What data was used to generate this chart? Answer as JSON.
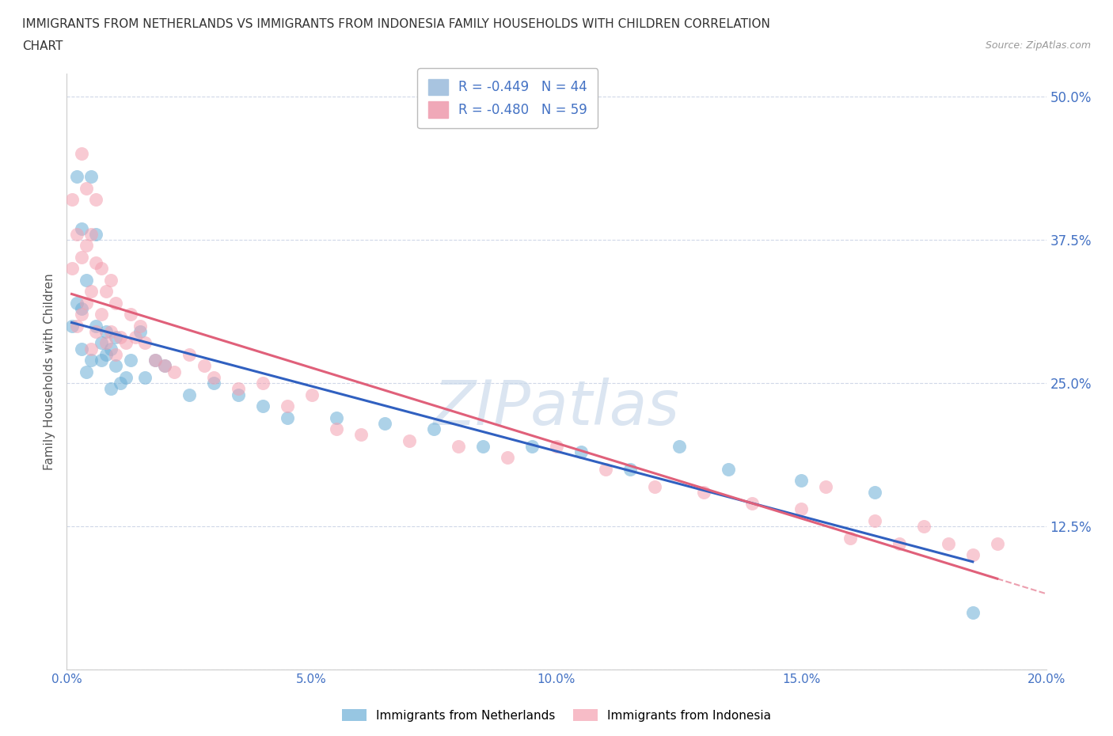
{
  "title_line1": "IMMIGRANTS FROM NETHERLANDS VS IMMIGRANTS FROM INDONESIA FAMILY HOUSEHOLDS WITH CHILDREN CORRELATION",
  "title_line2": "CHART",
  "source": "Source: ZipAtlas.com",
  "xlabel_nl": "Immigrants from Netherlands",
  "xlabel_id": "Immigrants from Indonesia",
  "ylabel": "Family Households with Children",
  "watermark": "ZIPatlas",
  "legend_nl": {
    "R": -0.449,
    "N": 44
  },
  "legend_id": {
    "R": -0.48,
    "N": 59
  },
  "nl_color": "#6baed6",
  "id_color": "#f4a0b0",
  "nl_line_color": "#3060C0",
  "id_line_color": "#E0607A",
  "xlim": [
    0.0,
    0.2
  ],
  "ylim": [
    0.0,
    0.52
  ],
  "xticks": [
    0.0,
    0.05,
    0.1,
    0.15,
    0.2
  ],
  "xtick_labels": [
    "0.0%",
    "5.0%",
    "10.0%",
    "15.0%",
    "20.0%"
  ],
  "yticks": [
    0.0,
    0.125,
    0.25,
    0.375,
    0.5
  ],
  "ytick_labels": [
    "",
    "12.5%",
    "25.0%",
    "37.5%",
    "50.0%"
  ],
  "nl_x": [
    0.001,
    0.002,
    0.002,
    0.003,
    0.003,
    0.003,
    0.004,
    0.004,
    0.005,
    0.005,
    0.006,
    0.006,
    0.007,
    0.007,
    0.008,
    0.008,
    0.009,
    0.009,
    0.01,
    0.01,
    0.011,
    0.012,
    0.013,
    0.015,
    0.016,
    0.018,
    0.02,
    0.025,
    0.03,
    0.035,
    0.04,
    0.045,
    0.055,
    0.065,
    0.075,
    0.085,
    0.095,
    0.105,
    0.115,
    0.125,
    0.135,
    0.15,
    0.165,
    0.185
  ],
  "nl_y": [
    0.3,
    0.32,
    0.43,
    0.28,
    0.315,
    0.385,
    0.26,
    0.34,
    0.27,
    0.43,
    0.3,
    0.38,
    0.27,
    0.285,
    0.275,
    0.295,
    0.245,
    0.28,
    0.265,
    0.29,
    0.25,
    0.255,
    0.27,
    0.295,
    0.255,
    0.27,
    0.265,
    0.24,
    0.25,
    0.24,
    0.23,
    0.22,
    0.22,
    0.215,
    0.21,
    0.195,
    0.195,
    0.19,
    0.175,
    0.195,
    0.175,
    0.165,
    0.155,
    0.05
  ],
  "id_x": [
    0.001,
    0.001,
    0.002,
    0.002,
    0.003,
    0.003,
    0.003,
    0.004,
    0.004,
    0.004,
    0.005,
    0.005,
    0.005,
    0.006,
    0.006,
    0.006,
    0.007,
    0.007,
    0.008,
    0.008,
    0.009,
    0.009,
    0.01,
    0.01,
    0.011,
    0.012,
    0.013,
    0.014,
    0.015,
    0.016,
    0.018,
    0.02,
    0.022,
    0.025,
    0.028,
    0.03,
    0.035,
    0.04,
    0.045,
    0.05,
    0.055,
    0.06,
    0.07,
    0.08,
    0.09,
    0.1,
    0.11,
    0.12,
    0.13,
    0.14,
    0.15,
    0.155,
    0.16,
    0.165,
    0.17,
    0.175,
    0.18,
    0.185,
    0.19
  ],
  "id_y": [
    0.35,
    0.41,
    0.3,
    0.38,
    0.31,
    0.36,
    0.45,
    0.32,
    0.37,
    0.42,
    0.28,
    0.33,
    0.38,
    0.295,
    0.355,
    0.41,
    0.31,
    0.35,
    0.285,
    0.33,
    0.295,
    0.34,
    0.275,
    0.32,
    0.29,
    0.285,
    0.31,
    0.29,
    0.3,
    0.285,
    0.27,
    0.265,
    0.26,
    0.275,
    0.265,
    0.255,
    0.245,
    0.25,
    0.23,
    0.24,
    0.21,
    0.205,
    0.2,
    0.195,
    0.185,
    0.195,
    0.175,
    0.16,
    0.155,
    0.145,
    0.14,
    0.16,
    0.115,
    0.13,
    0.11,
    0.125,
    0.11,
    0.1,
    0.11
  ],
  "background_color": "#ffffff",
  "grid_color": "#d0d8e8"
}
